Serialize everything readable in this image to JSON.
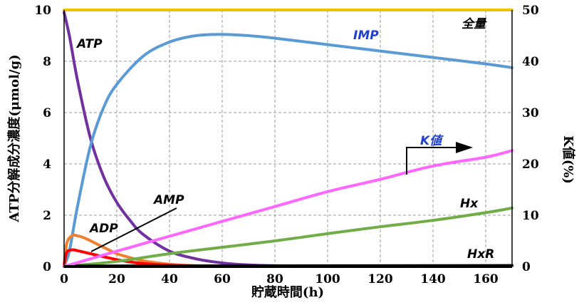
{
  "chart_data": {
    "type": "line",
    "title": "",
    "xlabel": "貯蔵時間(h)",
    "ylabel": "ATP分解成分濃度(μmol/g)",
    "y2label": "K値(%)",
    "xlim": [
      0,
      170
    ],
    "ylim": [
      0,
      10
    ],
    "y2lim": [
      0,
      50
    ],
    "xticks": [
      0,
      20,
      40,
      60,
      80,
      100,
      120,
      140,
      160
    ],
    "yticks": [
      0,
      2,
      4,
      6,
      8,
      10
    ],
    "y2ticks": [
      0,
      10,
      20,
      30,
      40,
      50
    ],
    "grid": true,
    "series": [
      {
        "name": "全量",
        "axis": "left",
        "color": "#f2c200",
        "x": [
          0,
          170
        ],
        "y": [
          10,
          10
        ]
      },
      {
        "name": "ATP",
        "axis": "left",
        "color": "#7030a0",
        "x": [
          0,
          2,
          5,
          10,
          15,
          20,
          25,
          30,
          40,
          50,
          60,
          70,
          80,
          90
        ],
        "y": [
          9.9,
          9.0,
          7.3,
          5.0,
          3.5,
          2.5,
          1.8,
          1.25,
          0.6,
          0.3,
          0.14,
          0.06,
          0.03,
          0.01
        ]
      },
      {
        "name": "IMP",
        "axis": "left",
        "color": "#5b9bd5",
        "x": [
          0,
          2,
          5,
          10,
          15,
          20,
          30,
          40,
          50,
          60,
          70,
          80,
          100,
          120,
          140,
          160,
          170
        ],
        "y": [
          0.05,
          0.6,
          2.3,
          4.7,
          6.2,
          7.1,
          8.2,
          8.75,
          9.0,
          9.05,
          9.0,
          8.9,
          8.65,
          8.4,
          8.15,
          7.9,
          7.75
        ]
      },
      {
        "name": "ADP",
        "axis": "left",
        "color": "#f08030",
        "x": [
          0,
          1,
          3,
          5,
          8,
          12,
          16,
          20,
          25,
          30,
          40,
          50,
          60
        ],
        "y": [
          0.05,
          0.9,
          1.2,
          1.2,
          1.1,
          0.9,
          0.7,
          0.5,
          0.35,
          0.22,
          0.09,
          0.03,
          0.0
        ]
      },
      {
        "name": "AMP",
        "axis": "left",
        "color": "#ff0000",
        "x": [
          0,
          1,
          3,
          5,
          10,
          15,
          20,
          25,
          30,
          40,
          50,
          60
        ],
        "y": [
          0.05,
          0.55,
          0.65,
          0.62,
          0.5,
          0.38,
          0.27,
          0.18,
          0.12,
          0.05,
          0.02,
          0.0
        ]
      },
      {
        "name": "Hx",
        "axis": "left",
        "color": "#70ad47",
        "x": [
          0,
          20,
          40,
          60,
          80,
          100,
          120,
          140,
          160,
          170
        ],
        "y": [
          0.0,
          0.2,
          0.5,
          0.75,
          1.0,
          1.28,
          1.55,
          1.8,
          2.1,
          2.28
        ]
      },
      {
        "name": "HxR",
        "axis": "left",
        "color": "#000000",
        "x": [
          0,
          170
        ],
        "y": [
          0.02,
          0.04
        ]
      },
      {
        "name": "K値",
        "axis": "right",
        "color": "#ff66ff",
        "x": [
          0,
          2,
          10,
          20,
          40,
          60,
          80,
          100,
          120,
          140,
          160,
          170
        ],
        "y": [
          0.2,
          0.3,
          1.5,
          3.0,
          5.9,
          8.8,
          11.7,
          14.6,
          17.0,
          19.6,
          21.3,
          22.6
        ]
      }
    ],
    "annotations": [
      "ATP",
      "IMP",
      "全量",
      "K値",
      "AMP",
      "ADP",
      "Hx",
      "HxR"
    ]
  }
}
